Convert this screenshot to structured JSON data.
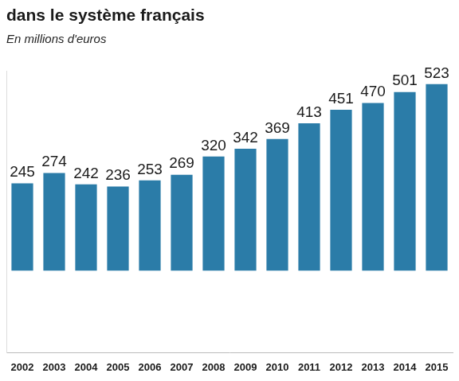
{
  "chart_data": {
    "type": "bar",
    "title": "dans le système français",
    "subtitle": "En millions d'euros",
    "categories": [
      "2002",
      "2003",
      "2004",
      "2005",
      "2006",
      "2007",
      "2008",
      "2009",
      "2010",
      "2011",
      "2012",
      "2013",
      "2014",
      "2015"
    ],
    "values": [
      245,
      274,
      242,
      236,
      253,
      269,
      320,
      342,
      369,
      413,
      451,
      470,
      501,
      523
    ],
    "color": "#2b7ca8",
    "ylim": [
      -230,
      560
    ],
    "grid": false,
    "data_labels": true,
    "tick_labels": "x"
  }
}
